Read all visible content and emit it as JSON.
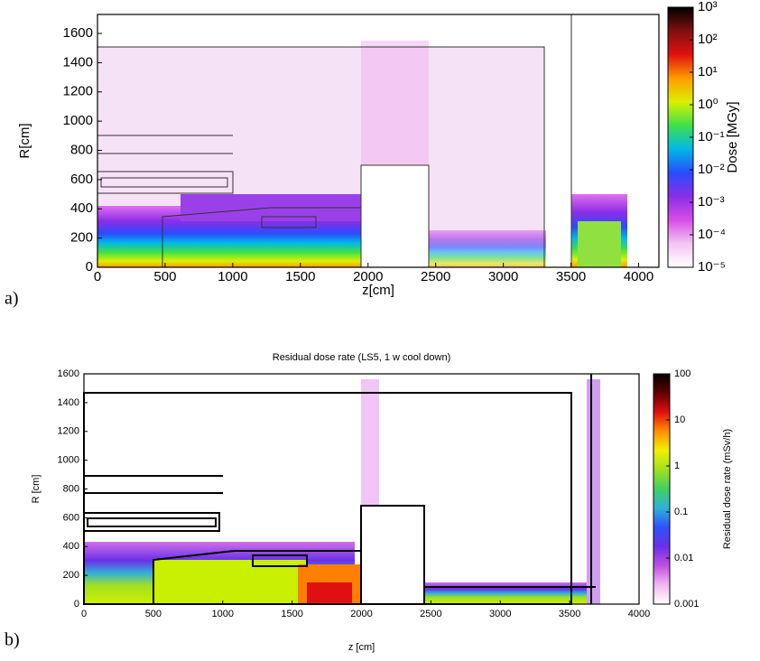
{
  "chart_data": [
    {
      "type": "heatmap",
      "label": "a)",
      "xlabel": "z[cm]",
      "ylabel": "R[cm]",
      "colorbar_label": "Dose [MGy]",
      "xlim": [
        0,
        4150
      ],
      "xticks": [
        0,
        500,
        1000,
        1500,
        2000,
        2500,
        3000,
        3500,
        4000
      ],
      "ylim": [
        0,
        1730
      ],
      "yticks": [
        0,
        200,
        400,
        600,
        800,
        1000,
        1200,
        1400,
        1600
      ],
      "colorbar_log": true,
      "colorbar_lim": [
        1e-05,
        1000
      ],
      "colorbar_ticks": [
        {
          "value": 1e-05,
          "label": "10⁻⁵"
        },
        {
          "value": 0.0001,
          "label": "10⁻⁴"
        },
        {
          "value": 0.001,
          "label": "10⁻³"
        },
        {
          "value": 0.01,
          "label": "10⁻²"
        },
        {
          "value": 0.1,
          "label": "10⁻¹"
        },
        {
          "value": 1,
          "label": "10⁰"
        },
        {
          "value": 10,
          "label": "10¹"
        },
        {
          "value": 100,
          "label": "10²"
        },
        {
          "value": 1000,
          "label": "10³"
        }
      ],
      "colormap": [
        "#ffffff",
        "#f2c6f2",
        "#d64ee6",
        "#8a2ee6",
        "#2a4cff",
        "#00b8e8",
        "#3ee04a",
        "#dcf000",
        "#ff9a00",
        "#e01010",
        "#801010",
        "#000000"
      ]
    },
    {
      "type": "heatmap",
      "label": "b)",
      "title": "Residual dose rate (LS5, 1 w cool down)",
      "xlabel": "z [cm]",
      "ylabel": "R [cm]",
      "colorbar_label": "Residual dose rate (mSv/h)",
      "xlim": [
        0,
        4000
      ],
      "xticks": [
        0,
        500,
        1000,
        1500,
        2000,
        2500,
        3000,
        3500,
        4000
      ],
      "ylim": [
        0,
        1600
      ],
      "yticks": [
        0,
        200,
        400,
        600,
        800,
        1000,
        1200,
        1400,
        1600
      ],
      "colorbar_log": true,
      "colorbar_lim": [
        0.001,
        100
      ],
      "colorbar_ticks": [
        0.001,
        0.01,
        0.1,
        1,
        10,
        100
      ],
      "colormap": [
        "#ffffff",
        "#f0b8f0",
        "#c050e0",
        "#6a30e8",
        "#3050ff",
        "#30b0d8",
        "#40d060",
        "#a0e020",
        "#f0f000",
        "#ff9000",
        "#e01010",
        "#600000",
        "#000000"
      ]
    }
  ]
}
